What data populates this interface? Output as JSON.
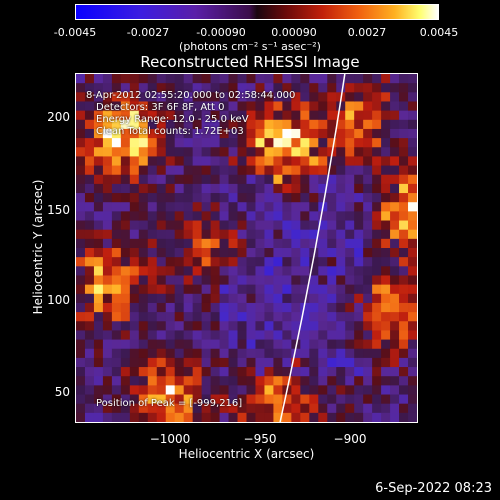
{
  "colorbar": {
    "ticks": [
      "-0.0045",
      "-0.0027",
      "-0.00090",
      "0.00090",
      "0.0027",
      "0.0045"
    ],
    "unit": "(photons cm⁻² s⁻¹ asec⁻²)"
  },
  "chart_data": {
    "type": "heatmap",
    "title": "Reconstructed RHESSI Image",
    "xlabel": "Heliocentric X (arcsec)",
    "ylabel": "Heliocentric Y (arcsec)",
    "xlim": [
      -1038,
      -901
    ],
    "ylim": [
      35,
      225
    ],
    "xticks": [
      -1000,
      -950,
      -900
    ],
    "xtick_labels": [
      "−1000",
      "−950",
      "−900"
    ],
    "yticks": [
      50,
      100,
      150,
      200
    ],
    "ytick_labels": [
      "50",
      "100",
      "150",
      "200"
    ],
    "color_range": [
      -0.0045,
      0.0045
    ],
    "limb_arc": [
      {
        "x": -956,
        "y": 35
      },
      {
        "x": -930,
        "y": 225
      }
    ],
    "hot_regions": [
      {
        "x": -1020,
        "y": 190,
        "level": 0.95
      },
      {
        "x": -1025,
        "y": 110,
        "level": 0.75
      },
      {
        "x": -955,
        "y": 185,
        "level": 0.95
      },
      {
        "x": -925,
        "y": 200,
        "level": 0.6
      },
      {
        "x": -902,
        "y": 150,
        "level": 0.9
      },
      {
        "x": -912,
        "y": 95,
        "level": 0.7
      },
      {
        "x": -1000,
        "y": 50,
        "level": 0.7
      },
      {
        "x": -955,
        "y": 45,
        "level": 0.65
      },
      {
        "x": -985,
        "y": 130,
        "level": 0.45
      }
    ],
    "annotations": {
      "time_range": "8-Apr-2012 02:55:20.000 to 02:58:44.000",
      "detectors": "Detectors: 3F 6F 8F, Att 0",
      "energy": "Energy Range: 12.0 - 25.0 keV",
      "clean": "Clean    Total counts: 1.72E+03",
      "peak": "Position of Peak = [-999,216]"
    }
  },
  "timestamp": "6-Sep-2022 08:23"
}
